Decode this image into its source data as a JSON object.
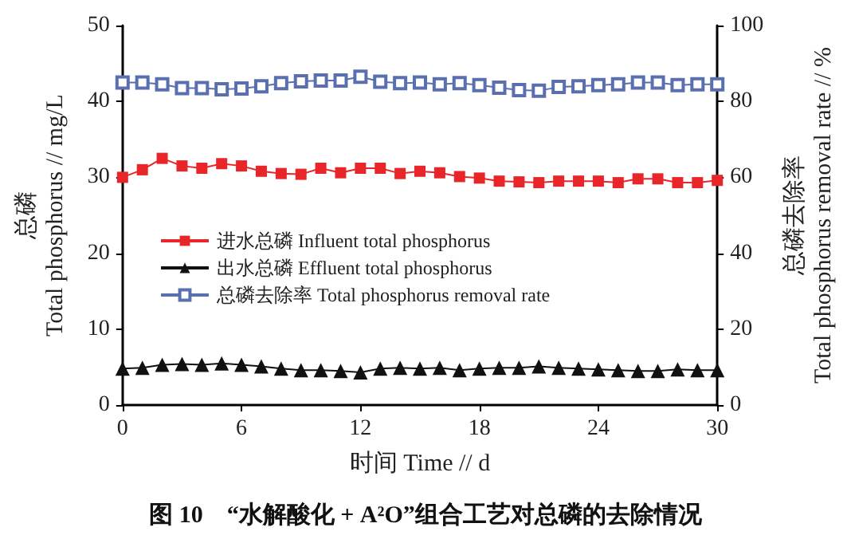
{
  "chart_data": {
    "type": "line",
    "title": "图 10　“水解酸化 + A²O”组合工艺对总磷的去除情况",
    "xlabel": "时间 Time // d",
    "ylabel": "总磷\nTotal phosphorus // mg/L",
    "y2label": "总磷去除率\nTotal phosphorus removal rate // %",
    "x": [
      0,
      1,
      2,
      3,
      4,
      5,
      6,
      7,
      8,
      9,
      10,
      11,
      12,
      13,
      14,
      15,
      16,
      17,
      18,
      19,
      20,
      21,
      22,
      23,
      24,
      25,
      26,
      27,
      28,
      29,
      30
    ],
    "series": [
      {
        "name": "进水总磷 Influent total phosphorus",
        "color": "#e8262a",
        "marker": "square",
        "values": [
          30,
          31,
          32.5,
          31.5,
          31.2,
          31.8,
          31.5,
          30.8,
          30.5,
          30.4,
          31.2,
          30.6,
          31.2,
          31.2,
          30.5,
          30.8,
          30.6,
          30.1,
          29.9,
          29.5,
          29.4,
          29.3,
          29.5,
          29.5,
          29.5,
          29.3,
          29.8,
          29.8,
          29.3,
          29.3,
          29.6
        ]
      },
      {
        "name": "出水总磷 Effluent total phosphorus",
        "color": "#111111",
        "marker": "triangle",
        "values": [
          4.8,
          4.9,
          5.3,
          5.4,
          5.3,
          5.5,
          5.3,
          5.1,
          4.8,
          4.6,
          4.6,
          4.5,
          4.3,
          4.8,
          4.9,
          4.8,
          4.9,
          4.6,
          4.8,
          4.9,
          4.9,
          5.1,
          4.9,
          4.8,
          4.7,
          4.6,
          4.5,
          4.5,
          4.7,
          4.6,
          4.6
        ]
      },
      {
        "name": "总磷去除率 Total phosphorus removal rate",
        "color": "#5a6fb0",
        "marker": "square",
        "axis": "y2",
        "values": [
          85,
          85,
          84.5,
          83.5,
          83.5,
          83.2,
          83.4,
          84,
          84.8,
          85.3,
          85.5,
          85.5,
          86.5,
          85.2,
          84.8,
          85,
          84.5,
          84.8,
          84.3,
          83.6,
          83,
          82.8,
          83.8,
          84,
          84.3,
          84.5,
          85,
          85,
          84.3,
          84.5,
          84.5
        ]
      }
    ],
    "xlim": [
      0,
      30
    ],
    "xticks": [
      0,
      6,
      12,
      18,
      24,
      30
    ],
    "ylim": [
      0,
      50
    ],
    "yticks": [
      0,
      10,
      20,
      30,
      40,
      50
    ],
    "y2lim": [
      0,
      100
    ],
    "y2ticks": [
      0,
      20,
      40,
      60,
      80,
      100
    ],
    "grid": false,
    "legend": "left"
  }
}
